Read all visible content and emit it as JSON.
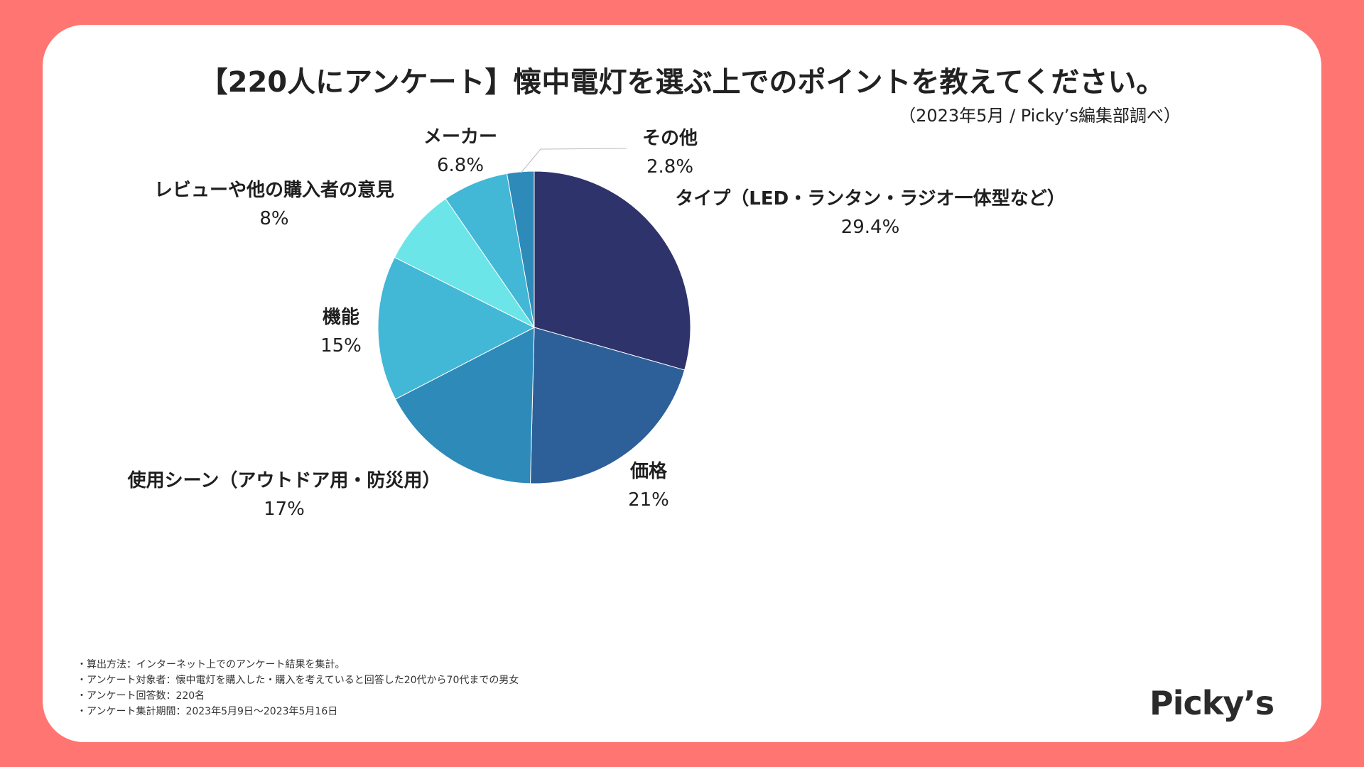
{
  "header": {
    "title": "【220人にアンケート】懐中電灯を選ぶ上でのポイントを教えてください。",
    "subtitle": "（2023年5月 / Picky’s編集部調べ）"
  },
  "colors": {
    "background": "#FF7571",
    "card": "#FFFFFF"
  },
  "chart_data": {
    "type": "pie",
    "title": "【220人にアンケート】懐中電灯を選ぶ上でのポイントを教えてください。",
    "slices": [
      {
        "name": "タイプ（LED・ランタン・ラジオ一体型など）",
        "label": "29.4%",
        "value": 29.4,
        "color": "#2F336B"
      },
      {
        "name": "価格",
        "label": "21%",
        "value": 21,
        "color": "#2D5F98"
      },
      {
        "name": "使用シーン（アウトドア用・防災用）",
        "label": "17%",
        "value": 17,
        "color": "#2D8AB9"
      },
      {
        "name": "機能",
        "label": "15%",
        "value": 15,
        "color": "#42B7D6"
      },
      {
        "name": "レビューや他の購入者の意見",
        "label": "8%",
        "value": 8,
        "color": "#6CE5E8"
      },
      {
        "name": "メーカー",
        "label": "6.8%",
        "value": 6.8,
        "color": "#42B7D6"
      },
      {
        "name": "その他",
        "label": "2.8%",
        "value": 2.8,
        "color": "#2D8AB9"
      }
    ]
  },
  "notes": [
    "・算出方法：インターネット上でのアンケート結果を集計。",
    "・アンケート対象者：懐中電灯を購入した・購入を考えていると回答した20代から70代までの男女",
    "・アンケート回答数：220名",
    "・アンケート集計期間：2023年5月9日〜2023年5月16日"
  ],
  "logo": {
    "text": "Picky’s"
  }
}
